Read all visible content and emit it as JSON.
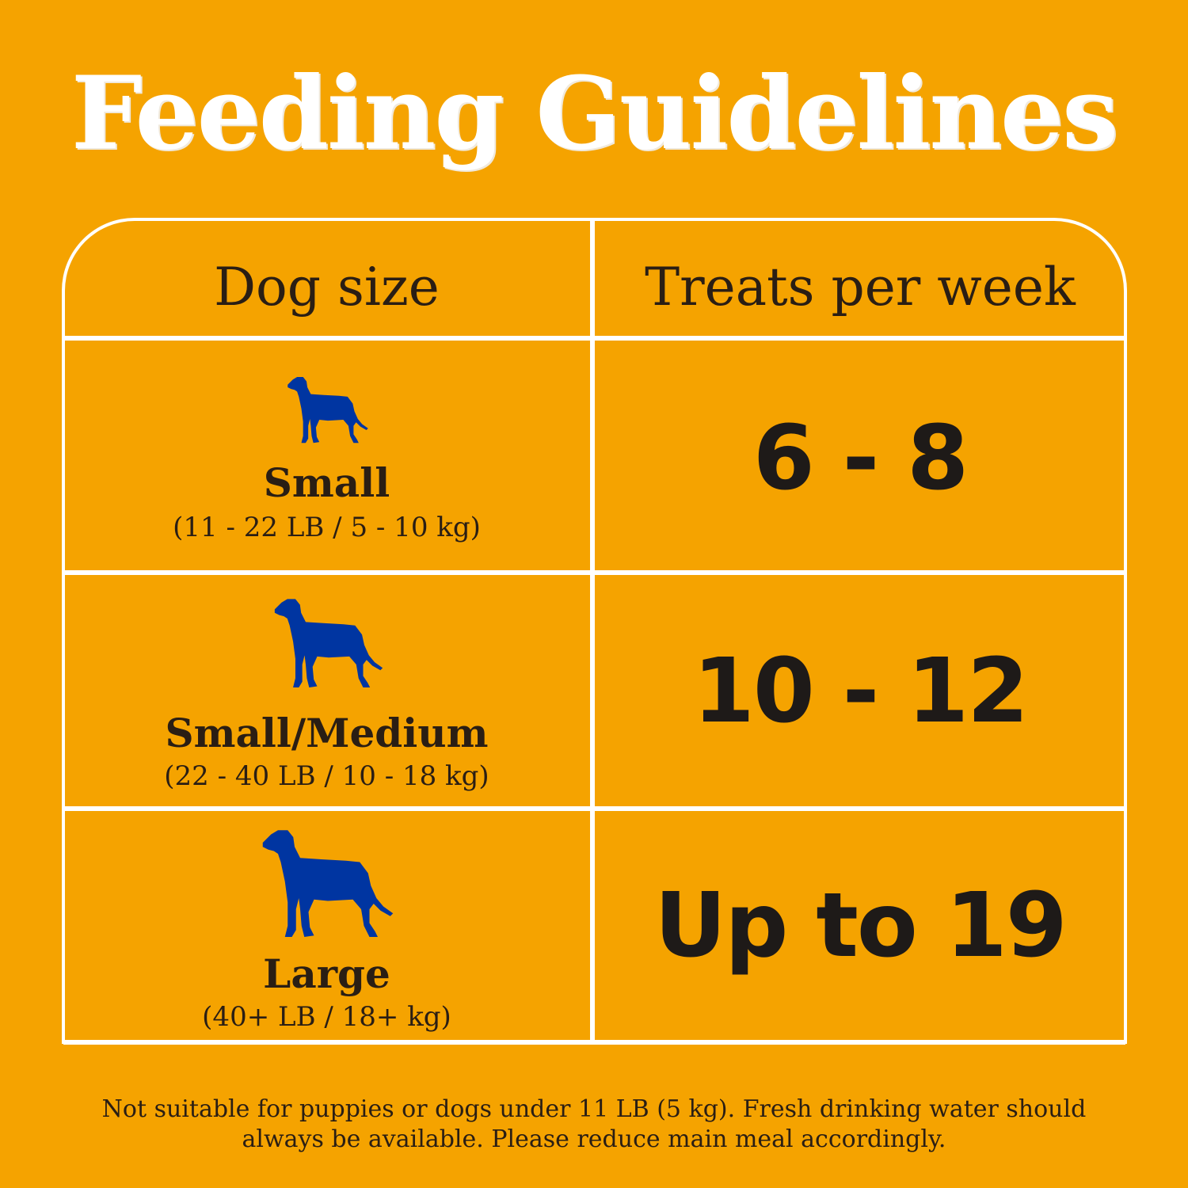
{
  "title": "Feeding Guidelines",
  "table": {
    "headers": [
      "Dog size",
      "Treats per week"
    ],
    "rows": [
      {
        "size": "Small",
        "range": "(11 - 22 LB / 5 - 10 kg)",
        "treats": "6 - 8",
        "icon": "dog-silhouette-icon"
      },
      {
        "size": "Small/Medium",
        "range": "(22 - 40 LB / 10 - 18 kg)",
        "treats": "10 - 12",
        "icon": "dog-silhouette-icon"
      },
      {
        "size": "Large",
        "range": "(40+  LB / 18+ kg)",
        "treats": "Up to 19",
        "icon": "dog-silhouette-icon"
      }
    ]
  },
  "footnote": "Not suitable for puppies or dogs under 11 LB (5 kg). Fresh drinking water should always be available. Please reduce main meal accordingly.",
  "colors": {
    "background": "#F5A300",
    "title": "#FFFFFF",
    "text": "#2A1E14",
    "dog_icon": "#0035A1",
    "grid_lines": "#FFFFFF"
  }
}
